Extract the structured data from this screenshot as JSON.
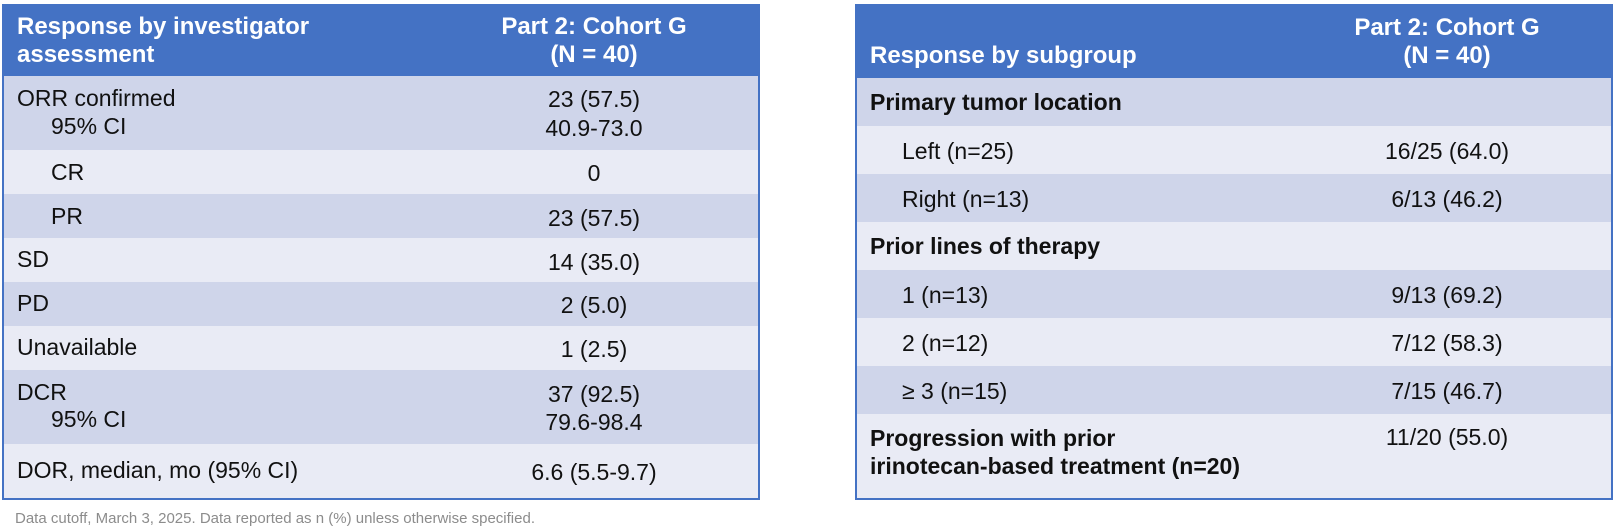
{
  "left_table": {
    "header": {
      "label": "Response by investigator assessment",
      "label_line1": "Response by investigator",
      "label_line2": "assessment",
      "col_line1": "Part 2: Cohort G",
      "col_line2": "(N = 40)"
    },
    "rows": [
      {
        "label": "ORR confirmed",
        "sub": "95% CI",
        "value": "23 (57.5)",
        "sub_value": "40.9-73.0"
      },
      {
        "label": "CR",
        "value": "0"
      },
      {
        "label": "PR",
        "value": "23 (57.5)"
      },
      {
        "label": "SD",
        "value": "14 (35.0)"
      },
      {
        "label": "PD",
        "value": "2 (5.0)"
      },
      {
        "label": "Unavailable",
        "value": "1 (2.5)"
      },
      {
        "label": "DCR",
        "sub": "95% CI",
        "value": "37 (92.5)",
        "sub_value": "79.6-98.4"
      },
      {
        "label": "DOR, median, mo (95% CI)",
        "value": "6.6 (5.5-9.7)"
      }
    ]
  },
  "right_table": {
    "header": {
      "label": "Response by subgroup",
      "col_line1": "Part 2: Cohort G",
      "col_line2": "(N = 40)"
    },
    "rows": [
      {
        "label": "Primary tumor location"
      },
      {
        "label": "Left (n=25)",
        "value": "16/25 (64.0)"
      },
      {
        "label": "Right (n=13)",
        "value": "6/13 (46.2)"
      },
      {
        "label": "Prior lines of therapy"
      },
      {
        "label": "1 (n=13)",
        "value": "9/13 (69.2)"
      },
      {
        "label": "2 (n=12)",
        "value": "7/12 (58.3)"
      },
      {
        "label": "≥ 3 (n=15)",
        "value": "7/15 (46.7)"
      },
      {
        "label": "Progression with prior irinotecan-based treatment (n=20)",
        "label_line1": "Progression with prior",
        "label_line2": "irinotecan-based treatment (n=20)",
        "value": "11/20 (55.0)"
      }
    ]
  },
  "footnote": "Data cutoff, March 3, 2025. Data reported as n (%) unless otherwise specified.",
  "colors": {
    "header": "#4472c4",
    "row_dark": "#cfd5ea",
    "row_light": "#e9ebf5",
    "footnote": "#8c8c8c"
  }
}
